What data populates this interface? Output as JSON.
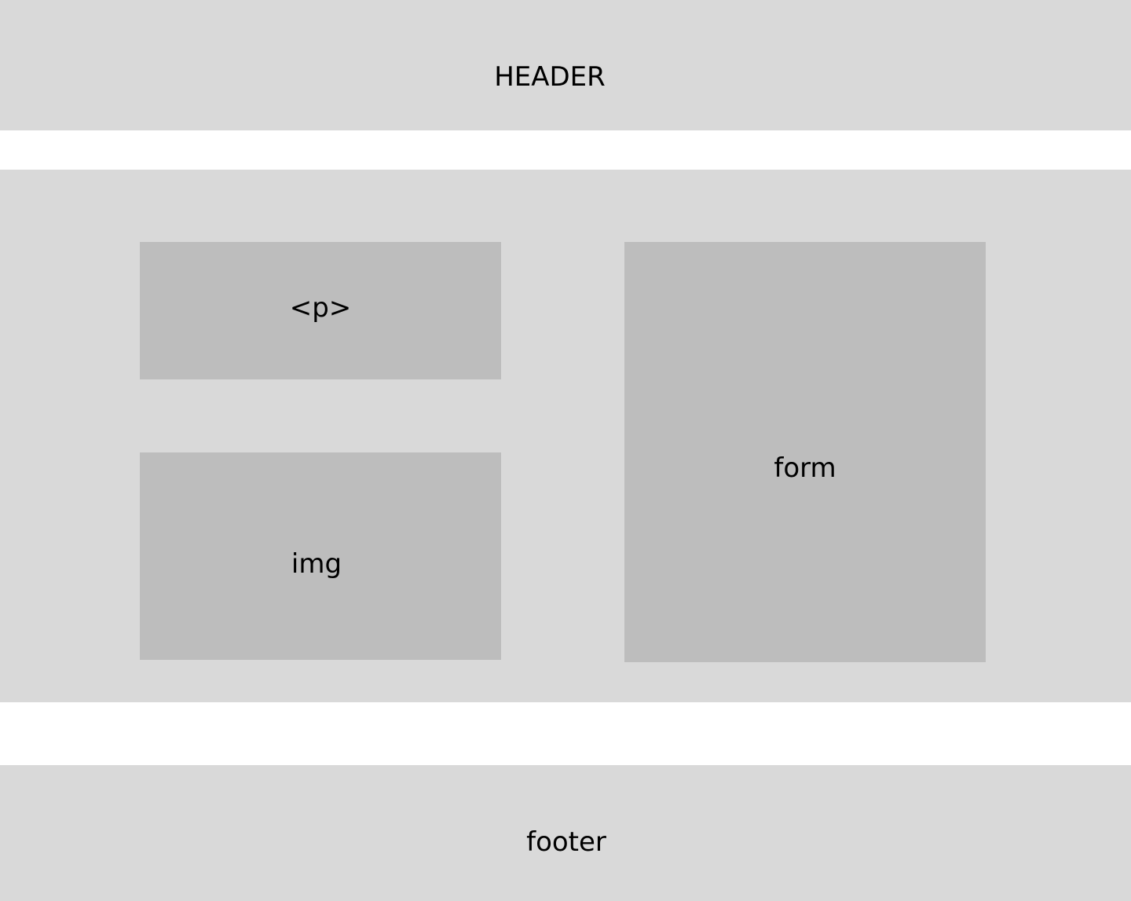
{
  "header": {
    "label": "HEADER"
  },
  "main": {
    "paragraph_block": {
      "label": "<p>"
    },
    "image_block": {
      "label": "img"
    },
    "form_block": {
      "label": "form"
    }
  },
  "footer": {
    "label": "footer"
  },
  "colors": {
    "background": "#ffffff",
    "section_fill": "#d9d9d9",
    "block_fill": "#bdbdbd",
    "text": "#000000"
  }
}
